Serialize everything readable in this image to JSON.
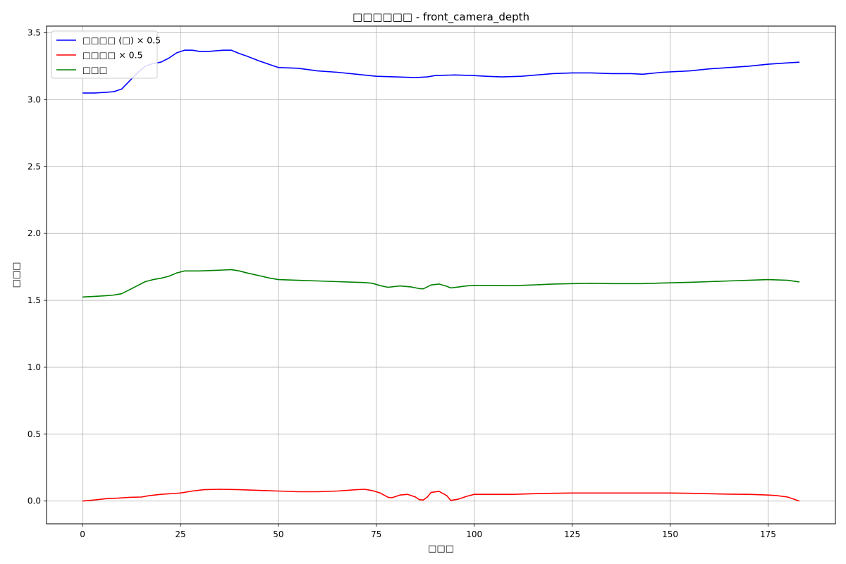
{
  "chart_data": {
    "type": "line",
    "title": "□□□□□□ - front_camera_depth",
    "xlabel": "□□□",
    "ylabel": "□□□",
    "xlim": [
      -9.2,
      192.2
    ],
    "ylim": [
      -0.17,
      3.55
    ],
    "xticks": [
      0,
      25,
      50,
      75,
      100,
      125,
      150,
      175
    ],
    "yticks": [
      0.0,
      0.5,
      1.0,
      1.5,
      2.0,
      2.5,
      3.0,
      3.5
    ],
    "xtick_labels": [
      "0",
      "25",
      "50",
      "75",
      "100",
      "125",
      "150",
      "175"
    ],
    "ytick_labels": [
      "0.0",
      "0.5",
      "1.0",
      "1.5",
      "2.0",
      "2.5",
      "3.0",
      "3.5"
    ],
    "grid": true,
    "legend": "top-left",
    "series": [
      {
        "name": "□□□□ (□) × 0.5",
        "color": "#0000ff",
        "points": [
          [
            0,
            3.05
          ],
          [
            3,
            3.05
          ],
          [
            6,
            3.055
          ],
          [
            8,
            3.06
          ],
          [
            10,
            3.08
          ],
          [
            12,
            3.14
          ],
          [
            14,
            3.2
          ],
          [
            16,
            3.25
          ],
          [
            18,
            3.27
          ],
          [
            20,
            3.28
          ],
          [
            22,
            3.31
          ],
          [
            24,
            3.35
          ],
          [
            26,
            3.37
          ],
          [
            28,
            3.37
          ],
          [
            30,
            3.36
          ],
          [
            32,
            3.36
          ],
          [
            34,
            3.365
          ],
          [
            36,
            3.37
          ],
          [
            38,
            3.37
          ],
          [
            40,
            3.345
          ],
          [
            42,
            3.325
          ],
          [
            45,
            3.29
          ],
          [
            48,
            3.26
          ],
          [
            50,
            3.24
          ],
          [
            55,
            3.235
          ],
          [
            60,
            3.215
          ],
          [
            65,
            3.205
          ],
          [
            70,
            3.19
          ],
          [
            75,
            3.175
          ],
          [
            80,
            3.17
          ],
          [
            85,
            3.165
          ],
          [
            88,
            3.17
          ],
          [
            90,
            3.18
          ],
          [
            95,
            3.185
          ],
          [
            100,
            3.18
          ],
          [
            103,
            3.175
          ],
          [
            107,
            3.17
          ],
          [
            112,
            3.175
          ],
          [
            116,
            3.185
          ],
          [
            120,
            3.195
          ],
          [
            125,
            3.2
          ],
          [
            130,
            3.2
          ],
          [
            135,
            3.195
          ],
          [
            140,
            3.195
          ],
          [
            143,
            3.19
          ],
          [
            148,
            3.205
          ],
          [
            155,
            3.215
          ],
          [
            160,
            3.23
          ],
          [
            165,
            3.24
          ],
          [
            170,
            3.25
          ],
          [
            175,
            3.265
          ],
          [
            180,
            3.275
          ],
          [
            183,
            3.28
          ]
        ]
      },
      {
        "name": "□□□□ × 0.5",
        "color": "#ff0000",
        "points": [
          [
            0,
            0.0
          ],
          [
            3,
            0.008
          ],
          [
            6,
            0.018
          ],
          [
            9,
            0.022
          ],
          [
            12,
            0.028
          ],
          [
            15,
            0.03
          ],
          [
            17,
            0.04
          ],
          [
            20,
            0.05
          ],
          [
            25,
            0.06
          ],
          [
            28,
            0.075
          ],
          [
            31,
            0.085
          ],
          [
            35,
            0.088
          ],
          [
            40,
            0.085
          ],
          [
            45,
            0.08
          ],
          [
            50,
            0.075
          ],
          [
            55,
            0.07
          ],
          [
            60,
            0.07
          ],
          [
            65,
            0.075
          ],
          [
            70,
            0.085
          ],
          [
            72,
            0.088
          ],
          [
            74,
            0.078
          ],
          [
            76,
            0.06
          ],
          [
            78,
            0.028
          ],
          [
            79,
            0.025
          ],
          [
            81,
            0.045
          ],
          [
            83,
            0.05
          ],
          [
            85,
            0.03
          ],
          [
            86,
            0.01
          ],
          [
            87,
            0.008
          ],
          [
            88,
            0.03
          ],
          [
            89,
            0.065
          ],
          [
            91,
            0.073
          ],
          [
            93,
            0.04
          ],
          [
            94,
            0.005
          ],
          [
            96,
            0.015
          ],
          [
            98,
            0.035
          ],
          [
            100,
            0.05
          ],
          [
            105,
            0.05
          ],
          [
            110,
            0.05
          ],
          [
            115,
            0.055
          ],
          [
            120,
            0.058
          ],
          [
            125,
            0.06
          ],
          [
            130,
            0.06
          ],
          [
            135,
            0.06
          ],
          [
            140,
            0.06
          ],
          [
            145,
            0.06
          ],
          [
            150,
            0.06
          ],
          [
            155,
            0.058
          ],
          [
            160,
            0.055
          ],
          [
            165,
            0.052
          ],
          [
            170,
            0.05
          ],
          [
            175,
            0.045
          ],
          [
            177,
            0.042
          ],
          [
            180,
            0.03
          ],
          [
            183,
            0.0
          ]
        ]
      },
      {
        "name": "□□□",
        "color": "#008000",
        "points": [
          [
            0,
            1.525
          ],
          [
            3,
            1.53
          ],
          [
            6,
            1.535
          ],
          [
            8,
            1.54
          ],
          [
            10,
            1.55
          ],
          [
            12,
            1.58
          ],
          [
            14,
            1.61
          ],
          [
            16,
            1.64
          ],
          [
            18,
            1.655
          ],
          [
            20,
            1.665
          ],
          [
            22,
            1.68
          ],
          [
            24,
            1.705
          ],
          [
            26,
            1.72
          ],
          [
            28,
            1.72
          ],
          [
            30,
            1.72
          ],
          [
            34,
            1.725
          ],
          [
            36,
            1.727
          ],
          [
            38,
            1.73
          ],
          [
            40,
            1.72
          ],
          [
            42,
            1.705
          ],
          [
            45,
            1.685
          ],
          [
            48,
            1.665
          ],
          [
            50,
            1.655
          ],
          [
            55,
            1.65
          ],
          [
            60,
            1.645
          ],
          [
            65,
            1.64
          ],
          [
            70,
            1.635
          ],
          [
            72,
            1.633
          ],
          [
            74,
            1.628
          ],
          [
            76,
            1.61
          ],
          [
            78,
            1.598
          ],
          [
            81,
            1.608
          ],
          [
            84,
            1.6
          ],
          [
            86,
            1.588
          ],
          [
            87,
            1.586
          ],
          [
            89,
            1.615
          ],
          [
            91,
            1.622
          ],
          [
            93,
            1.605
          ],
          [
            94,
            1.593
          ],
          [
            96,
            1.6
          ],
          [
            98,
            1.608
          ],
          [
            100,
            1.612
          ],
          [
            105,
            1.612
          ],
          [
            110,
            1.61
          ],
          [
            115,
            1.615
          ],
          [
            120,
            1.622
          ],
          [
            125,
            1.625
          ],
          [
            130,
            1.628
          ],
          [
            135,
            1.625
          ],
          [
            140,
            1.625
          ],
          [
            143,
            1.625
          ],
          [
            148,
            1.63
          ],
          [
            155,
            1.635
          ],
          [
            160,
            1.64
          ],
          [
            165,
            1.645
          ],
          [
            170,
            1.65
          ],
          [
            175,
            1.655
          ],
          [
            180,
            1.65
          ],
          [
            183,
            1.638
          ]
        ]
      }
    ]
  }
}
